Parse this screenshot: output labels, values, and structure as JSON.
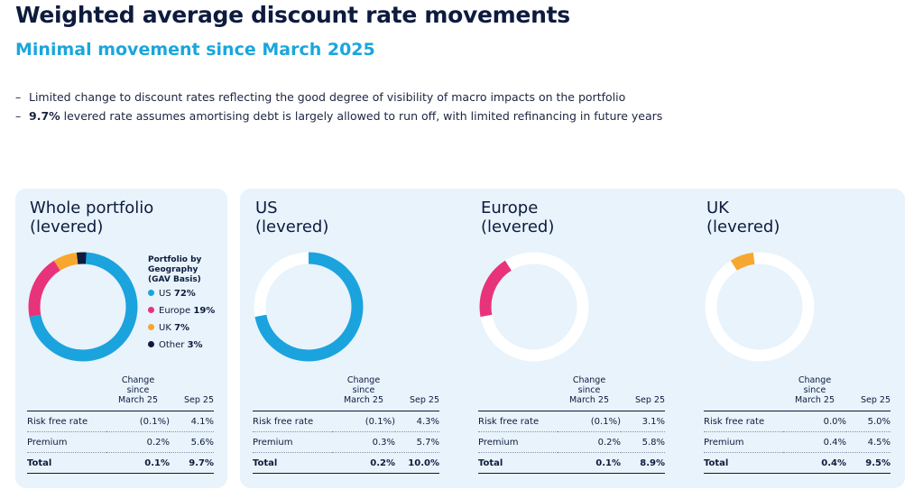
{
  "header": {
    "title": "Weighted average discount rate movements",
    "subtitle": "Minimal movement since March 2025"
  },
  "bullets": [
    {
      "bold": "",
      "text": "Limited change to discount rates reflecting the good degree of visibility of macro impacts on the portfolio"
    },
    {
      "bold": "9.7%",
      "text": " levered rate assumes amortising debt is largely allowed to run off, with limited refinancing in future years"
    }
  ],
  "colors": {
    "us": "#1ba3de",
    "europe": "#e8337a",
    "uk": "#f7a72f",
    "other": "#0d1b3e",
    "ring_bg": "#ffffff",
    "panel_bg": "#e8f3fb"
  },
  "legend": {
    "title_lines": [
      "Portfolio by",
      "Geography",
      "(GAV Basis)"
    ],
    "items": [
      {
        "label": "US",
        "value": "72%"
      },
      {
        "label": "Europe",
        "value": "19%"
      },
      {
        "label": "UK",
        "value": "7%"
      },
      {
        "label": "Other",
        "value": "3%"
      }
    ]
  },
  "table_headers": {
    "change": [
      "Change",
      "since",
      "March 25"
    ],
    "sep": "Sep 25"
  },
  "chart_data": [
    {
      "type": "pie",
      "title_lines": [
        "Whole portfolio",
        "(levered)"
      ],
      "slices": [
        {
          "name": "US",
          "value": 72,
          "color_key": "us"
        },
        {
          "name": "Europe",
          "value": 19,
          "color_key": "europe"
        },
        {
          "name": "UK",
          "value": 7,
          "color_key": "uk"
        },
        {
          "name": "Other",
          "value": 3,
          "color_key": "other"
        }
      ],
      "rows": [
        {
          "label": "Risk free rate",
          "change": "(0.1%)",
          "sep": "4.1%"
        },
        {
          "label": "Premium",
          "change": "0.2%",
          "sep": "5.6%"
        },
        {
          "label": "Total",
          "change": "0.1%",
          "sep": "9.7%"
        }
      ]
    },
    {
      "type": "pie",
      "title_lines": [
        "US",
        "(levered)"
      ],
      "slices": [
        {
          "name": "US",
          "value": 72,
          "color_key": "us"
        }
      ],
      "rows": [
        {
          "label": "Risk free rate",
          "change": "(0.1%)",
          "sep": "4.3%"
        },
        {
          "label": "Premium",
          "change": "0.3%",
          "sep": "5.7%"
        },
        {
          "label": "Total",
          "change": "0.2%",
          "sep": "10.0%"
        }
      ]
    },
    {
      "type": "pie",
      "title_lines": [
        "Europe",
        "(levered)"
      ],
      "slices": [
        {
          "name": "Europe",
          "value": 19,
          "color_key": "europe",
          "start": 72
        }
      ],
      "rows": [
        {
          "label": "Risk free rate",
          "change": "(0.1%)",
          "sep": "3.1%"
        },
        {
          "label": "Premium",
          "change": "0.2%",
          "sep": "5.8%"
        },
        {
          "label": "Total",
          "change": "0.1%",
          "sep": "8.9%"
        }
      ]
    },
    {
      "type": "pie",
      "title_lines": [
        "UK",
        "(levered)"
      ],
      "slices": [
        {
          "name": "UK",
          "value": 7,
          "color_key": "uk",
          "start": 91
        }
      ],
      "rows": [
        {
          "label": "Risk free rate",
          "change": "0.0%",
          "sep": "5.0%"
        },
        {
          "label": "Premium",
          "change": "0.4%",
          "sep": "4.5%"
        },
        {
          "label": "Total",
          "change": "0.4%",
          "sep": "9.5%"
        }
      ]
    }
  ]
}
